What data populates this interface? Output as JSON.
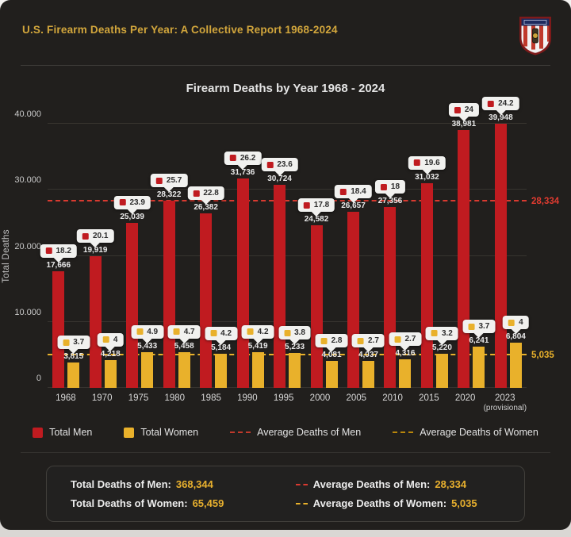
{
  "page": {
    "title": "U.S. Firearm Deaths Per Year: A Collective Report 1968-2024"
  },
  "chart_data": {
    "type": "bar",
    "title": "Firearm Deaths by Year 1968 - 2024",
    "xlabel": "",
    "ylabel": "Total Deaths",
    "ylim": [
      0,
      40000
    ],
    "grid": true,
    "legend_position": "bottom",
    "y_ticks": [
      {
        "value": 40000,
        "label": "40.000"
      },
      {
        "value": 30000,
        "label": "30.000"
      },
      {
        "value": 20000,
        "label": "20.000"
      },
      {
        "value": 10000,
        "label": "10.000"
      },
      {
        "value": 0,
        "label": "0"
      }
    ],
    "categories": [
      "1968",
      "1970",
      "1975",
      "1980",
      "1985",
      "1990",
      "1995",
      "2000",
      "2005",
      "2010",
      "2015",
      "2020",
      "2023"
    ],
    "last_category_note": "(provisional)",
    "series": [
      {
        "name": "Total Men",
        "color": "#c01b20",
        "values": [
          17666,
          19919,
          25039,
          28322,
          26382,
          31736,
          30724,
          24582,
          26657,
          27356,
          31032,
          38981,
          39948
        ],
        "labels": [
          "17,666",
          "19,919",
          "25,039",
          "28,322",
          "26,382",
          "31,736",
          "30,724",
          "24,582",
          "26,657",
          "27,356",
          "31,032",
          "38,981",
          "39,948"
        ],
        "tooltips": [
          "18.2",
          "20.1",
          "23.9",
          "25.7",
          "22.8",
          "26.2",
          "23.6",
          "17.8",
          "18.4",
          "18",
          "19.6",
          "24",
          "24.2"
        ]
      },
      {
        "name": "Total Women",
        "color": "#e9b12b",
        "values": [
          3815,
          4218,
          5433,
          5458,
          5184,
          5419,
          5233,
          4081,
          4037,
          4316,
          5220,
          6241,
          6804
        ],
        "labels": [
          "3,815",
          "4,218",
          "5,433",
          "5,458",
          "5,184",
          "5,419",
          "5,233",
          "4,081",
          "4,037",
          "4,316",
          "5,220",
          "6,241",
          "6,804"
        ],
        "tooltips": [
          "3.7",
          "4",
          "4.9",
          "4.7",
          "4.2",
          "4.2",
          "3.8",
          "2.8",
          "2.7",
          "2.7",
          "3.2",
          "3.7",
          "4"
        ]
      }
    ],
    "average_lines": [
      {
        "name": "Average Deaths of Men",
        "value": 28334,
        "label": "28,334",
        "color": "#d93a30",
        "label_color": "#e03b30"
      },
      {
        "name": "Average Deaths of Women",
        "value": 5035,
        "label": "5,035",
        "color": "#e9b12b",
        "label_color": "#e9b12b"
      }
    ]
  },
  "legend": {
    "items": [
      {
        "label": "Total Men",
        "swatch": "square",
        "color": "#c01b20"
      },
      {
        "label": "Total Women",
        "swatch": "square",
        "color": "#e9b12b"
      },
      {
        "label": "Average Deaths of Men",
        "swatch": "dash",
        "color": "#c0392b"
      },
      {
        "label": "Average Deaths of Women",
        "swatch": "dash",
        "color": "#b8860b"
      }
    ]
  },
  "summary": {
    "rows": [
      {
        "label": "Total Deaths of Men:",
        "value": "368,344",
        "icon": "none",
        "icon_color": ""
      },
      {
        "label": "Average Deaths of Men:",
        "value": "28,334",
        "icon": "dash",
        "icon_color": "#d93a30"
      },
      {
        "label": "Total Deaths of Women:",
        "value": "65,459",
        "icon": "none",
        "icon_color": ""
      },
      {
        "label": "Average Deaths of Women:",
        "value": "5,035",
        "icon": "dash",
        "icon_color": "#e9b12b"
      }
    ]
  },
  "colors": {
    "card_background": "#211f1d",
    "title_gold": "#d2a63c",
    "men_red": "#c01b20",
    "women_gold": "#e9b12b",
    "avg_men_red": "#d93a30",
    "avg_women_gold": "#e9b12b"
  }
}
